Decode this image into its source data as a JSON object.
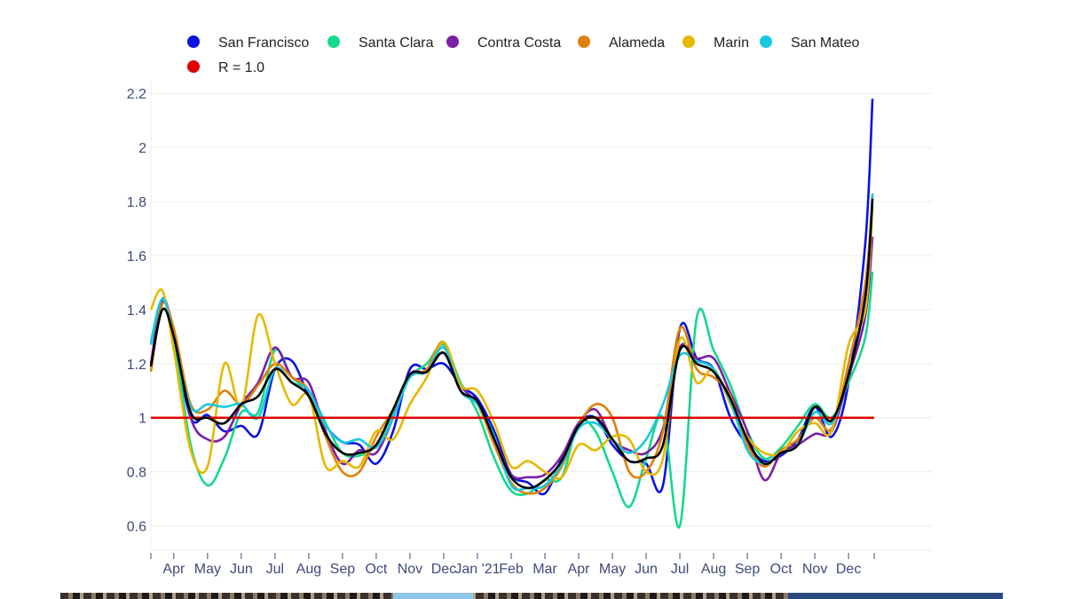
{
  "chart_data": {
    "type": "line",
    "title": "",
    "xlabel": "",
    "ylabel": "",
    "x_unit": "months since 2020-03-01",
    "xlim": [
      0.32,
      23.47
    ],
    "ylim": [
      0.51,
      2.25
    ],
    "grid": true,
    "legend_placement": "top",
    "y_ticks": [
      0.6,
      0.8,
      1,
      1.2,
      1.4,
      1.6,
      1.8,
      2,
      2.2
    ],
    "y_tick_labels": [
      "0.6",
      "0.8",
      "1",
      "1.2",
      "1.4",
      "1.6",
      "1.8",
      "2",
      "2.2"
    ],
    "x_ticks": [
      1,
      2,
      3,
      4,
      5,
      6,
      7,
      8,
      9,
      10,
      11,
      12,
      13,
      14,
      15,
      16,
      17,
      18,
      19,
      20,
      21
    ],
    "x_tick_labels": [
      "Apr",
      "May",
      "Jun",
      "Jul",
      "Aug",
      "Sep",
      "Oct",
      "Nov",
      "Dec",
      "Jan '21",
      "Feb",
      "Mar",
      "Apr",
      "May",
      "Jun",
      "Jul",
      "Aug",
      "Sep",
      "Oct",
      "Nov",
      "Dec"
    ],
    "x": [
      0.32,
      0.66,
      1,
      1.5,
      2,
      2.5,
      3,
      3.5,
      4,
      4.5,
      5,
      5.5,
      6,
      6.5,
      7,
      7.5,
      8,
      8.5,
      9,
      9.5,
      10,
      10.5,
      11,
      11.5,
      12,
      12.5,
      13,
      13.5,
      14,
      14.5,
      15,
      15.5,
      16,
      16.5,
      17,
      17.5,
      18,
      18.5,
      19,
      19.5,
      20,
      20.5,
      21,
      21.5,
      21.71
    ],
    "series": [
      {
        "name": "San Francisco",
        "color": "#0a12e0",
        "values": [
          1.19,
          1.44,
          1.3,
          1.0,
          1.01,
          0.95,
          0.97,
          0.94,
          1.18,
          1.21,
          1.08,
          0.97,
          0.91,
          0.9,
          0.83,
          0.95,
          1.18,
          1.18,
          1.2,
          1.12,
          1.07,
          0.95,
          0.79,
          0.76,
          0.72,
          0.85,
          0.98,
          1.0,
          0.9,
          0.84,
          0.83,
          0.75,
          1.33,
          1.22,
          1.18,
          1.0,
          0.9,
          0.84,
          0.86,
          0.92,
          1.04,
          0.93,
          1.13,
          1.65,
          2.18
        ]
      },
      {
        "name": "Santa Clara",
        "color": "#14d98a",
        "values": [
          1.28,
          1.44,
          1.3,
          0.9,
          0.75,
          0.85,
          1.02,
          1.02,
          1.25,
          1.15,
          1.1,
          0.98,
          0.87,
          0.86,
          0.9,
          1.02,
          1.15,
          1.2,
          1.27,
          1.13,
          1.02,
          0.85,
          0.73,
          0.72,
          0.77,
          0.78,
          0.98,
          0.95,
          0.8,
          0.67,
          0.85,
          1.0,
          0.6,
          1.37,
          1.25,
          1.12,
          0.95,
          0.85,
          0.89,
          0.97,
          1.05,
          1.0,
          1.13,
          1.3,
          1.54
        ]
      },
      {
        "name": "Contra Costa",
        "color": "#7a1fa8",
        "values": [
          1.2,
          1.43,
          1.32,
          1.0,
          0.92,
          0.93,
          1.05,
          1.13,
          1.26,
          1.15,
          1.13,
          0.95,
          0.83,
          0.88,
          0.87,
          1.0,
          1.16,
          1.17,
          1.24,
          1.12,
          1.05,
          0.93,
          0.79,
          0.78,
          0.79,
          0.86,
          0.98,
          1.03,
          0.92,
          0.88,
          0.87,
          0.96,
          1.26,
          1.22,
          1.22,
          1.09,
          0.95,
          0.77,
          0.87,
          0.9,
          0.94,
          0.95,
          1.15,
          1.38,
          1.67
        ]
      },
      {
        "name": "Alameda",
        "color": "#e0800a",
        "values": [
          1.17,
          1.42,
          1.33,
          1.05,
          1.03,
          1.1,
          1.05,
          1.12,
          1.2,
          1.15,
          1.1,
          0.93,
          0.8,
          0.8,
          0.93,
          1.03,
          1.15,
          1.18,
          1.28,
          1.1,
          1.05,
          0.9,
          0.76,
          0.72,
          0.74,
          0.82,
          0.97,
          1.05,
          1.0,
          0.8,
          0.8,
          0.95,
          1.33,
          1.18,
          1.15,
          1.08,
          0.9,
          0.82,
          0.88,
          0.92,
          1.0,
          0.96,
          1.2,
          1.5,
          1.82
        ]
      },
      {
        "name": "Marin",
        "color": "#e6b800",
        "values": [
          1.4,
          1.47,
          1.25,
          0.88,
          0.82,
          1.2,
          1.04,
          1.38,
          1.2,
          1.05,
          1.08,
          0.82,
          0.84,
          0.82,
          0.95,
          0.92,
          1.05,
          1.15,
          1.28,
          1.12,
          1.1,
          0.98,
          0.82,
          0.84,
          0.8,
          0.78,
          0.9,
          0.88,
          0.93,
          0.92,
          0.8,
          0.85,
          1.29,
          1.13,
          1.18,
          1.05,
          0.93,
          0.87,
          0.87,
          0.95,
          0.98,
          0.95,
          1.27,
          1.4,
          1.78
        ]
      },
      {
        "name": "San Mateo",
        "color": "#18c8e0",
        "values": [
          1.27,
          1.44,
          1.3,
          1.04,
          1.05,
          1.04,
          1.05,
          1.0,
          1.18,
          1.13,
          1.1,
          0.97,
          0.91,
          0.92,
          0.89,
          1.0,
          1.15,
          1.17,
          1.26,
          1.1,
          1.05,
          0.93,
          0.75,
          0.74,
          0.75,
          0.83,
          0.96,
          0.98,
          0.92,
          0.87,
          0.92,
          1.05,
          1.23,
          1.21,
          1.18,
          1.06,
          0.88,
          0.83,
          0.87,
          0.9,
          1.02,
          0.98,
          1.16,
          1.45,
          1.83
        ]
      },
      {
        "name": "",
        "color": "#000000",
        "values": [
          1.19,
          1.4,
          1.3,
          1.02,
          1.0,
          0.98,
          1.05,
          1.08,
          1.18,
          1.13,
          1.08,
          0.94,
          0.87,
          0.87,
          0.9,
          1.03,
          1.16,
          1.17,
          1.24,
          1.1,
          1.06,
          0.92,
          0.78,
          0.74,
          0.77,
          0.84,
          0.97,
          1.0,
          0.92,
          0.84,
          0.85,
          0.9,
          1.25,
          1.2,
          1.17,
          1.07,
          0.92,
          0.83,
          0.87,
          0.9,
          1.04,
          0.99,
          1.16,
          1.45,
          1.81
        ]
      }
    ],
    "reference_line": {
      "name": "R = 1.0",
      "color": "#e00000",
      "value": 1.0,
      "x_range": [
        0.32,
        21.76
      ]
    },
    "legend": [
      {
        "label": "San Francisco",
        "color": "#0a12e0"
      },
      {
        "label": "Santa Clara",
        "color": "#14d98a"
      },
      {
        "label": "Contra Costa",
        "color": "#7a1fa8"
      },
      {
        "label": "Alameda",
        "color": "#e0800a"
      },
      {
        "label": "Marin",
        "color": "#e6b800"
      },
      {
        "label": "San Mateo",
        "color": "#18c8e0"
      },
      {
        "label": "R = 1.0",
        "color": "#e00000"
      }
    ]
  }
}
